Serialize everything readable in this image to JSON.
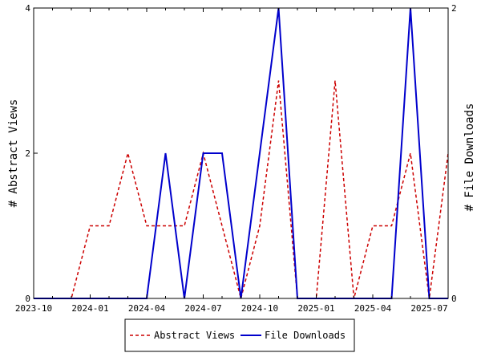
{
  "chart_data": {
    "type": "line",
    "ylabel_left": "# Abstract Views",
    "ylabel_right": "# File Downloads",
    "ylim_left": [
      0,
      4
    ],
    "ylim_right": [
      0,
      2
    ],
    "yticks_left": [
      0,
      2,
      4
    ],
    "yticks_right": [
      0,
      2
    ],
    "x": [
      "2023-10",
      "2023-11",
      "2023-12",
      "2024-01",
      "2024-02",
      "2024-03",
      "2024-04",
      "2024-05",
      "2024-06",
      "2024-07",
      "2024-08",
      "2024-09",
      "2024-10",
      "2024-11",
      "2024-12",
      "2025-01",
      "2025-02",
      "2025-03",
      "2025-04",
      "2025-05",
      "2025-06",
      "2025-07",
      "2025-08"
    ],
    "xtick_labels": [
      "2023-10",
      "2024-01",
      "2024-04",
      "2024-07",
      "2024-10",
      "2025-01",
      "2025-04",
      "2025-07"
    ],
    "grid": false,
    "legend_position": "bottom",
    "series": [
      {
        "name": "Abstract Views",
        "axis": "left",
        "color": "#cc0000",
        "style": "dashed",
        "values": [
          0,
          0,
          0,
          1,
          1,
          2,
          1,
          1,
          1,
          2,
          1,
          0,
          1,
          3,
          0,
          0,
          3,
          0,
          1,
          1,
          2,
          0,
          2
        ]
      },
      {
        "name": "File Downloads",
        "axis": "right",
        "color": "#0000cc",
        "style": "solid",
        "values": [
          0,
          0,
          0,
          0,
          0,
          0,
          0,
          1,
          0,
          1,
          1,
          0,
          1,
          2,
          0,
          0,
          0,
          0,
          0,
          0,
          2,
          0,
          0
        ]
      }
    ]
  }
}
